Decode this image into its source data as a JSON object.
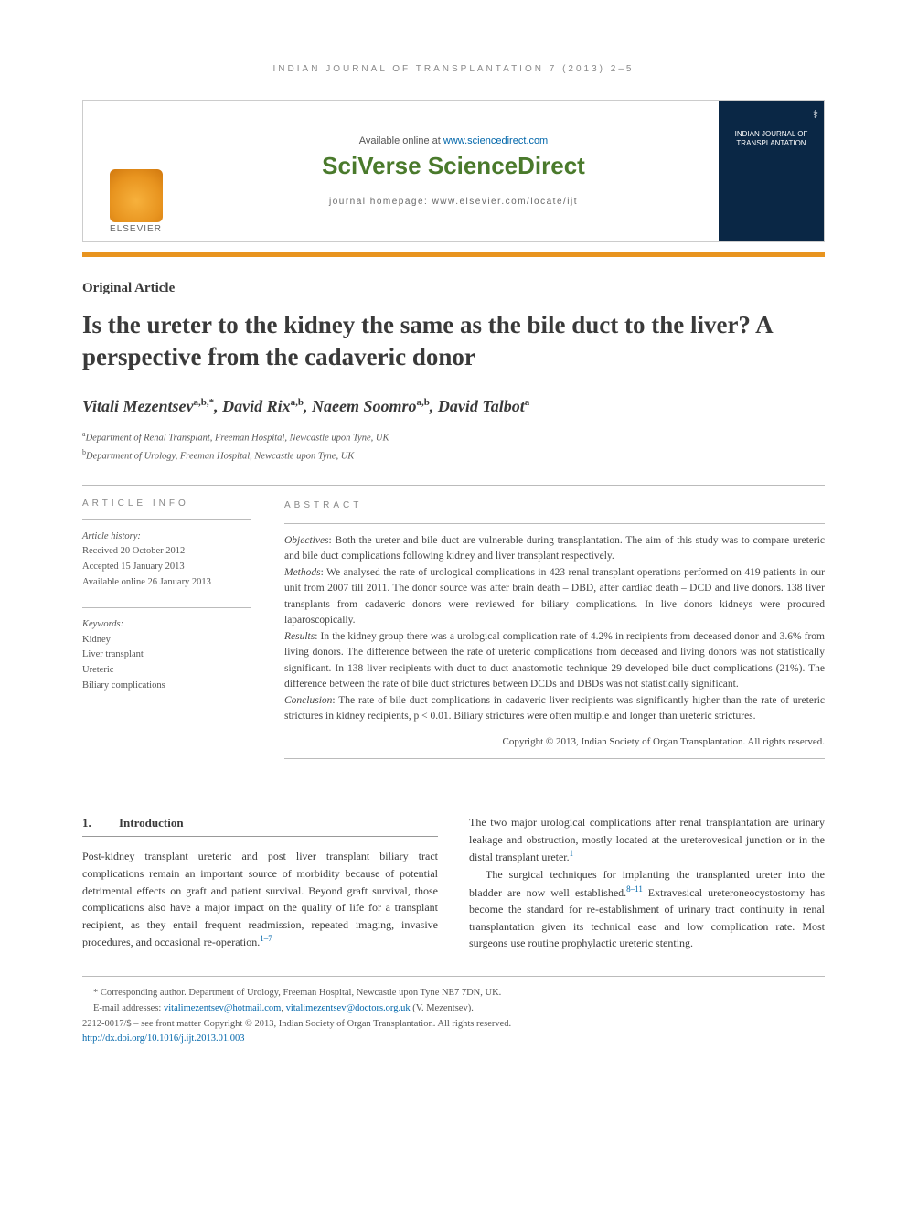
{
  "running_head": "INDIAN JOURNAL OF TRANSPLANTATION 7 (2013) 2–5",
  "banner": {
    "available_prefix": "Available online at ",
    "available_url": "www.sciencedirect.com",
    "brand": "SciVerse ScienceDirect",
    "homepage_label": "journal homepage: www.elsevier.com/locate/ijt",
    "publisher": "ELSEVIER",
    "cover_title": "INDIAN JOURNAL OF TRANSPLANTATION"
  },
  "article_type": "Original Article",
  "title": "Is the ureter to the kidney the same as the bile duct to the liver? A perspective from the cadaveric donor",
  "authors_html": "Vitali Mezentsev",
  "authors": [
    {
      "name": "Vitali Mezentsev",
      "sup": "a,b,*"
    },
    {
      "name": "David Rix",
      "sup": "a,b"
    },
    {
      "name": "Naeem Soomro",
      "sup": "a,b"
    },
    {
      "name": "David Talbot",
      "sup": "a"
    }
  ],
  "affiliations": [
    {
      "marker": "a",
      "text": "Department of Renal Transplant, Freeman Hospital, Newcastle upon Tyne, UK"
    },
    {
      "marker": "b",
      "text": "Department of Urology, Freeman Hospital, Newcastle upon Tyne, UK"
    }
  ],
  "info_head": "ARTICLE INFO",
  "abs_head": "ABSTRACT",
  "history_label": "Article history:",
  "history": {
    "received": "Received 20 October 2012",
    "accepted": "Accepted 15 January 2013",
    "online": "Available online 26 January 2013"
  },
  "keywords_label": "Keywords:",
  "keywords": [
    "Kidney",
    "Liver transplant",
    "Ureteric",
    "Biliary complications"
  ],
  "abstract": {
    "objectives_label": "Objectives",
    "objectives": "Both the ureter and bile duct are vulnerable during transplantation. The aim of this study was to compare ureteric and bile duct complications following kidney and liver transplant respectively.",
    "methods_label": "Methods",
    "methods": "We analysed the rate of urological complications in 423 renal transplant operations performed on 419 patients in our unit from 2007 till 2011. The donor source was after brain death – DBD, after cardiac death – DCD and live donors. 138 liver transplants from cadaveric donors were reviewed for biliary complications. In live donors kidneys were procured laparoscopically.",
    "results_label": "Results",
    "results": "In the kidney group there was a urological complication rate of 4.2% in recipients from deceased donor and 3.6% from living donors. The difference between the rate of ureteric complications from deceased and living donors was not statistically significant. In 138 liver recipients with duct to duct anastomotic technique 29 developed bile duct complications (21%). The difference between the rate of bile duct strictures between DCDs and DBDs was not statistically significant.",
    "conclusion_label": "Conclusion",
    "conclusion": "The rate of bile duct complications in cadaveric liver recipients was significantly higher than the rate of ureteric strictures in kidney recipients, p < 0.01. Biliary strictures were often multiple and longer than ureteric strictures."
  },
  "copyright": "Copyright © 2013, Indian Society of Organ Transplantation. All rights reserved.",
  "section1": {
    "num": "1.",
    "title": "Introduction"
  },
  "body": {
    "p1": "Post-kidney transplant ureteric and post liver transplant biliary tract complications remain an important source of morbidity because of potential detrimental effects on graft and patient survival. Beyond graft survival, those complications also have a major impact on the quality of life for a transplant recipient, as they entail frequent readmission, repeated imaging, invasive procedures, and occasional re-operation.",
    "p1_ref": "1–7",
    "p2": "The two major urological complications after renal transplantation are urinary leakage and obstruction, mostly located at the ureterovesical junction or in the distal transplant ureter.",
    "p2_ref": "1",
    "p3a": "The surgical techniques for implanting the transplanted ureter into the bladder are now well established.",
    "p3_ref": "8–11",
    "p3b": " Extravesical ureteroneocystostomy has become the standard for re-establishment of urinary tract continuity in renal transplantation given its technical ease and low complication rate. Most surgeons use routine prophylactic ureteric stenting."
  },
  "footnotes": {
    "corr_label": "* Corresponding author.",
    "corr_text": " Department of Urology, Freeman Hospital, Newcastle upon Tyne NE7 7DN, UK.",
    "email_label": "E-mail addresses: ",
    "email1": "vitalimezentsev@hotmail.com",
    "email_sep": ", ",
    "email2": "vitalimezentsev@doctors.org.uk",
    "email_tail": " (V. Mezentsev).",
    "issn": "2212-0017/$ – see front matter Copyright © 2013, Indian Society of Organ Transplantation. All rights reserved.",
    "doi": "http://dx.doi.org/10.1016/j.ijt.2013.01.003"
  },
  "colors": {
    "orange": "#e8941f",
    "green": "#4a7a2c",
    "link": "#0066aa",
    "coverbg": "#0a2745"
  }
}
